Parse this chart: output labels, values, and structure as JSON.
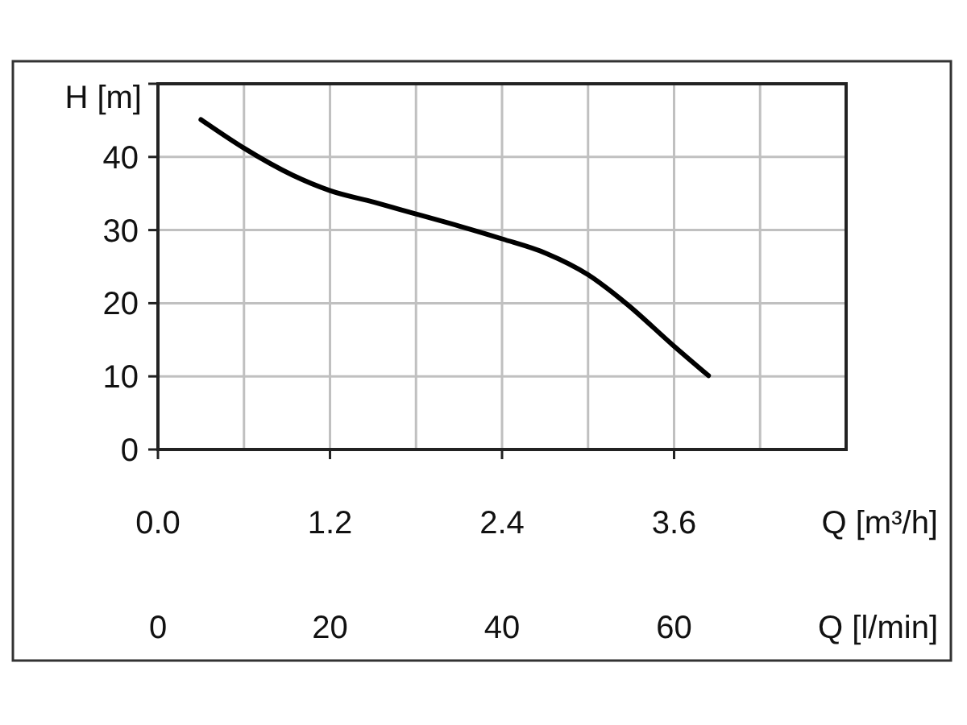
{
  "chart_data": {
    "type": "line",
    "xlabel": "Q [m³/h]",
    "ylabel": "H [m]",
    "x2label": "Q [l/min]",
    "xlim": [
      0,
      4.8
    ],
    "xticks": [
      {
        "value": 0,
        "label": "0.0"
      },
      {
        "value": 0.6,
        "label": null
      },
      {
        "value": 1.2,
        "label": "1.2"
      },
      {
        "value": 1.8,
        "label": null
      },
      {
        "value": 2.4,
        "label": "2.4"
      },
      {
        "value": 3.0,
        "label": null
      },
      {
        "value": 3.6,
        "label": "3.6"
      },
      {
        "value": 4.2,
        "label": null
      },
      {
        "value": 4.8,
        "label": null
      }
    ],
    "x2lim": [
      0,
      80
    ],
    "x2ticks": [
      0,
      20,
      40,
      60
    ],
    "ylim": [
      0,
      50
    ],
    "yticks": [
      0,
      10,
      20,
      30,
      40,
      {
        "value": 50,
        "label": null
      }
    ],
    "grid": true,
    "marker": "none",
    "line_style": "solid",
    "series": [
      {
        "color": "#000000",
        "x": [
          0.3,
          0.6,
          0.94,
          1.2,
          1.51,
          1.8,
          2.11,
          2.4,
          2.71,
          3.0,
          3.27,
          3.59,
          3.84
        ],
        "values": [
          45.1,
          41.2,
          37.5,
          35.4,
          33.8,
          32.2,
          30.5,
          28.8,
          26.8,
          23.9,
          19.9,
          14.3,
          10.1
        ]
      }
    ]
  }
}
